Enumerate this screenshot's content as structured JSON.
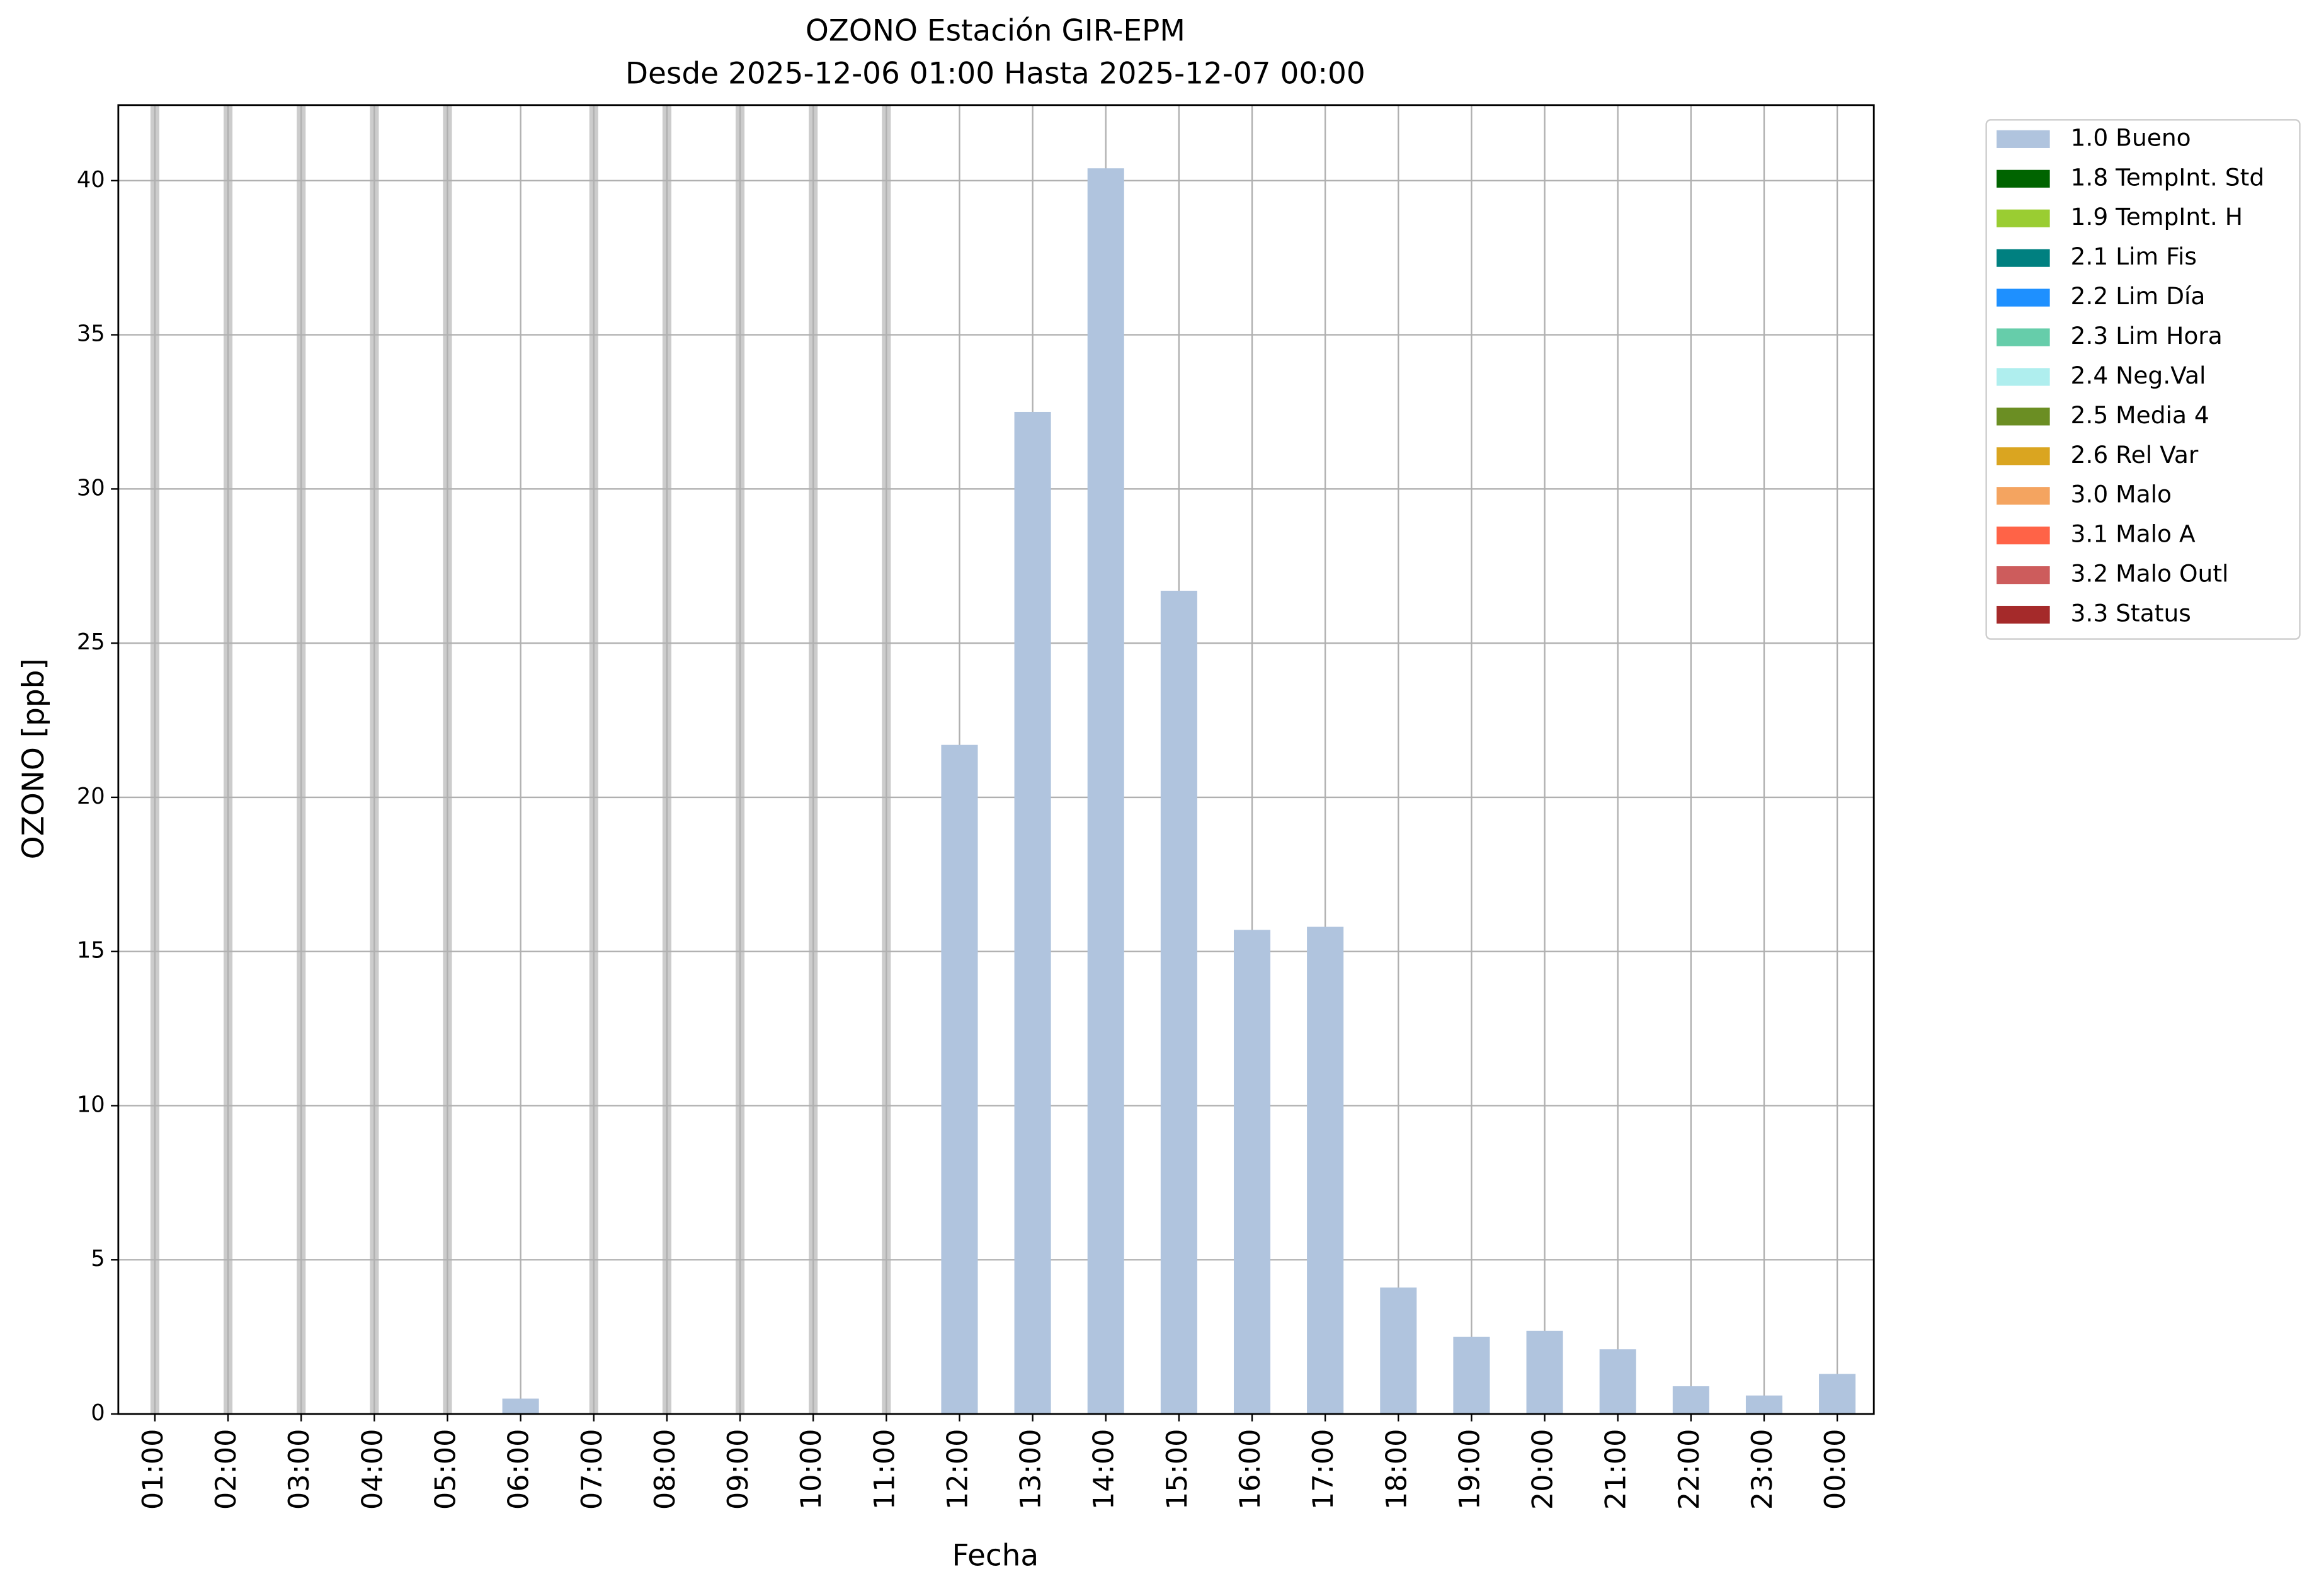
{
  "chart_data": {
    "type": "bar",
    "title": "OZONO Estación GIR-EPM",
    "subtitle": "Desde 2025-12-06 01:00 Hasta 2025-12-07 00:00",
    "x_label": "Fecha",
    "y_label": "OZONO [ppb]",
    "categories": [
      "01:00",
      "02:00",
      "03:00",
      "04:00",
      "05:00",
      "06:00",
      "07:00",
      "08:00",
      "09:00",
      "10:00",
      "11:00",
      "12:00",
      "13:00",
      "14:00",
      "15:00",
      "16:00",
      "17:00",
      "18:00",
      "19:00",
      "20:00",
      "21:00",
      "22:00",
      "23:00",
      "00:00"
    ],
    "series": [
      {
        "name": "1.0 Bueno",
        "color": "#b0c4de",
        "values": [
          null,
          null,
          null,
          null,
          null,
          0.5,
          null,
          null,
          null,
          null,
          null,
          21.7,
          32.5,
          40.4,
          26.7,
          15.7,
          15.8,
          4.1,
          2.5,
          2.7,
          2.1,
          0.9,
          0.6,
          1.3
        ]
      },
      {
        "name": "1.8 TempInt. Std",
        "color": "#006400",
        "values": [
          null,
          null,
          null,
          null,
          null,
          null,
          null,
          null,
          null,
          null,
          null,
          null,
          null,
          null,
          null,
          null,
          null,
          null,
          null,
          null,
          null,
          null,
          null,
          null
        ]
      },
      {
        "name": "1.9 TempInt. H",
        "color": "#9acd32",
        "values": [
          null,
          null,
          null,
          null,
          null,
          null,
          null,
          null,
          null,
          null,
          null,
          null,
          null,
          null,
          null,
          null,
          null,
          null,
          null,
          null,
          null,
          null,
          null,
          null
        ]
      },
      {
        "name": "2.1 Lim Fis",
        "color": "#008080",
        "values": [
          null,
          null,
          null,
          null,
          null,
          null,
          null,
          null,
          null,
          null,
          null,
          null,
          null,
          null,
          null,
          null,
          null,
          null,
          null,
          null,
          null,
          null,
          null,
          null
        ]
      },
      {
        "name": "2.2 Lim Día",
        "color": "#1e90ff",
        "values": [
          null,
          null,
          null,
          null,
          null,
          null,
          null,
          null,
          null,
          null,
          null,
          null,
          null,
          null,
          null,
          null,
          null,
          null,
          null,
          null,
          null,
          null,
          null,
          null
        ]
      },
      {
        "name": "2.3 Lim Hora",
        "color": "#66cdaa",
        "values": [
          null,
          null,
          null,
          null,
          null,
          null,
          null,
          null,
          null,
          null,
          null,
          null,
          null,
          null,
          null,
          null,
          null,
          null,
          null,
          null,
          null,
          null,
          null,
          null
        ]
      },
      {
        "name": "2.4 Neg.Val",
        "color": "#afeeee",
        "values": [
          null,
          null,
          null,
          null,
          null,
          null,
          null,
          null,
          null,
          null,
          null,
          null,
          null,
          null,
          null,
          null,
          null,
          null,
          null,
          null,
          null,
          null,
          null,
          null
        ]
      },
      {
        "name": "2.5 Media 4",
        "color": "#6b8e23",
        "values": [
          null,
          null,
          null,
          null,
          null,
          null,
          null,
          null,
          null,
          null,
          null,
          null,
          null,
          null,
          null,
          null,
          null,
          null,
          null,
          null,
          null,
          null,
          null,
          null
        ]
      },
      {
        "name": "2.6 Rel Var",
        "color": "#daa520",
        "values": [
          null,
          null,
          null,
          null,
          null,
          null,
          null,
          null,
          null,
          null,
          null,
          null,
          null,
          null,
          null,
          null,
          null,
          null,
          null,
          null,
          null,
          null,
          null,
          null
        ]
      },
      {
        "name": "3.0 Malo",
        "color": "#f4a460",
        "values": [
          null,
          null,
          null,
          null,
          null,
          null,
          null,
          null,
          null,
          null,
          null,
          null,
          null,
          null,
          null,
          null,
          null,
          null,
          null,
          null,
          null,
          null,
          null,
          null
        ]
      },
      {
        "name": "3.1 Malo A",
        "color": "#ff6347",
        "values": [
          null,
          null,
          null,
          null,
          null,
          null,
          null,
          null,
          null,
          null,
          null,
          null,
          null,
          null,
          null,
          null,
          null,
          null,
          null,
          null,
          null,
          null,
          null,
          null
        ]
      },
      {
        "name": "3.2 Malo Outl",
        "color": "#cd5c5c",
        "values": [
          null,
          null,
          null,
          null,
          null,
          null,
          null,
          null,
          null,
          null,
          null,
          null,
          null,
          null,
          null,
          null,
          null,
          null,
          null,
          null,
          null,
          null,
          null,
          null
        ]
      },
      {
        "name": "3.3 Status",
        "color": "#a52a2a",
        "values": [
          null,
          null,
          null,
          null,
          null,
          null,
          null,
          null,
          null,
          null,
          null,
          null,
          null,
          null,
          null,
          null,
          null,
          null,
          null,
          null,
          null,
          null,
          null,
          null
        ]
      }
    ],
    "ylim": [
      0,
      42.45
    ],
    "yticks": [
      0,
      5,
      10,
      15,
      20,
      25,
      30,
      35,
      40
    ],
    "grid": true,
    "legend": "outside-upper-right"
  }
}
